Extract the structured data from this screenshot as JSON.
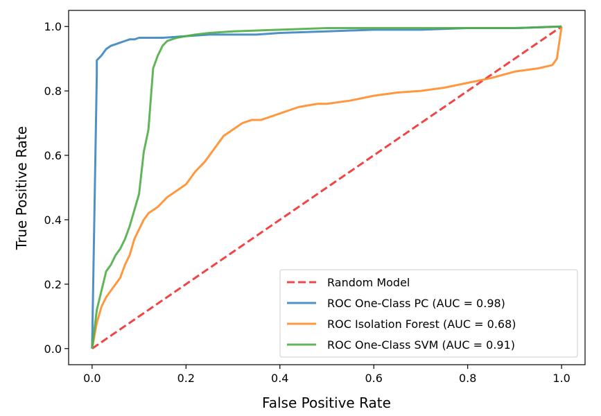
{
  "chart_data": {
    "type": "line",
    "xlabel": "False Positive Rate",
    "ylabel": "True Positive Rate",
    "xlim": [
      -0.05,
      1.05
    ],
    "ylim": [
      -0.05,
      1.05
    ],
    "xticks": [
      0.0,
      0.2,
      0.4,
      0.6,
      0.8,
      1.0
    ],
    "yticks": [
      0.0,
      0.2,
      0.4,
      0.6,
      0.8,
      1.0
    ],
    "xtick_labels": [
      "0.0",
      "0.2",
      "0.4",
      "0.6",
      "0.8",
      "1.0"
    ],
    "ytick_labels": [
      "0.0",
      "0.2",
      "0.4",
      "0.6",
      "0.8",
      "1.0"
    ],
    "grid": false,
    "legend_position": "lower-right",
    "series": [
      {
        "name": "Random Model",
        "color": "#f03030",
        "dash": true,
        "x": [
          0.0,
          1.0
        ],
        "y": [
          0.0,
          1.0
        ]
      },
      {
        "name": "ROC One-Class PC (AUC = 0.98)",
        "color": "#3a85bf",
        "dash": false,
        "x": [
          0.0,
          0.01,
          0.01,
          0.02,
          0.03,
          0.04,
          0.05,
          0.06,
          0.07,
          0.08,
          0.09,
          0.1,
          0.12,
          0.15,
          0.2,
          0.25,
          0.3,
          0.35,
          0.4,
          0.5,
          0.6,
          0.7,
          0.8,
          0.9,
          1.0
        ],
        "y": [
          0.0,
          0.85,
          0.895,
          0.91,
          0.93,
          0.94,
          0.945,
          0.95,
          0.955,
          0.96,
          0.96,
          0.965,
          0.965,
          0.965,
          0.97,
          0.975,
          0.975,
          0.975,
          0.98,
          0.985,
          0.99,
          0.99,
          0.995,
          0.995,
          1.0
        ]
      },
      {
        "name": "ROC Isolation Forest (AUC = 0.68)",
        "color": "#ff8c2a",
        "dash": false,
        "x": [
          0.0,
          0.01,
          0.02,
          0.03,
          0.05,
          0.06,
          0.07,
          0.08,
          0.09,
          0.1,
          0.11,
          0.12,
          0.14,
          0.16,
          0.18,
          0.2,
          0.22,
          0.24,
          0.26,
          0.28,
          0.3,
          0.32,
          0.34,
          0.36,
          0.38,
          0.4,
          0.42,
          0.44,
          0.46,
          0.48,
          0.5,
          0.55,
          0.6,
          0.65,
          0.7,
          0.75,
          0.8,
          0.85,
          0.9,
          0.95,
          0.98,
          0.99,
          1.0
        ],
        "y": [
          0.0,
          0.08,
          0.13,
          0.16,
          0.2,
          0.22,
          0.26,
          0.29,
          0.34,
          0.37,
          0.4,
          0.42,
          0.44,
          0.47,
          0.49,
          0.51,
          0.55,
          0.58,
          0.62,
          0.66,
          0.68,
          0.7,
          0.71,
          0.71,
          0.72,
          0.73,
          0.74,
          0.75,
          0.755,
          0.76,
          0.76,
          0.77,
          0.785,
          0.795,
          0.8,
          0.81,
          0.825,
          0.84,
          0.86,
          0.87,
          0.88,
          0.9,
          1.0
        ]
      },
      {
        "name": "ROC One-Class SVM (AUC = 0.91)",
        "color": "#4fad46",
        "dash": false,
        "x": [
          0.0,
          0.01,
          0.02,
          0.03,
          0.04,
          0.05,
          0.06,
          0.07,
          0.08,
          0.09,
          0.1,
          0.11,
          0.12,
          0.13,
          0.14,
          0.15,
          0.16,
          0.18,
          0.2,
          0.22,
          0.25,
          0.3,
          0.4,
          0.5,
          0.6,
          0.7,
          0.8,
          0.9,
          1.0
        ],
        "y": [
          0.0,
          0.12,
          0.18,
          0.24,
          0.26,
          0.29,
          0.31,
          0.34,
          0.38,
          0.43,
          0.48,
          0.61,
          0.68,
          0.87,
          0.91,
          0.94,
          0.955,
          0.965,
          0.97,
          0.975,
          0.98,
          0.985,
          0.99,
          0.995,
          0.995,
          0.995,
          0.995,
          0.995,
          1.0
        ]
      }
    ]
  }
}
